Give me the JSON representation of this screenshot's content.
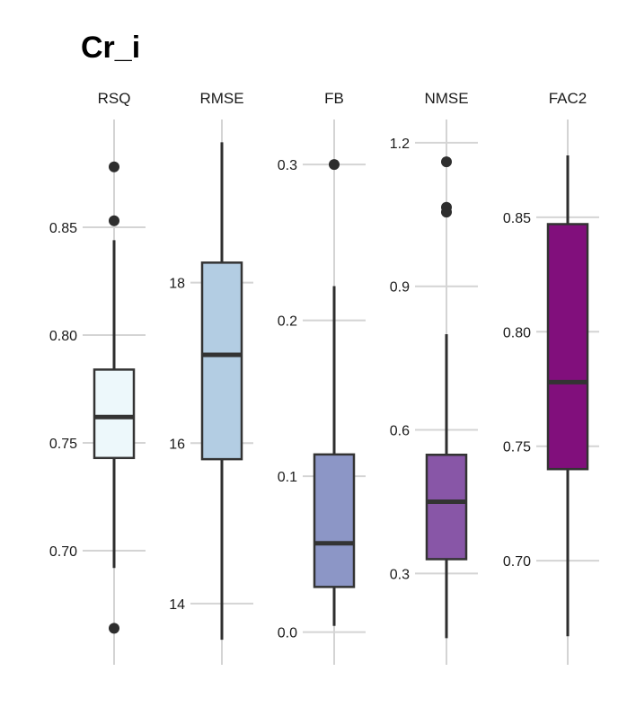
{
  "chart_data": {
    "type": "box",
    "title": "Cr_i",
    "grid": true,
    "panels": [
      {
        "label": "RSQ",
        "fill": "#edf8fb",
        "ylim": [
          0.655,
          0.895
        ],
        "ticks": [
          0.7,
          0.75,
          0.8,
          0.85
        ],
        "tick_labels": [
          "0.70",
          "0.75",
          "0.80",
          "0.85"
        ],
        "box": {
          "whisker_low": 0.692,
          "q1": 0.743,
          "median": 0.762,
          "q3": 0.784,
          "whisker_high": 0.844
        },
        "outliers": [
          0.878,
          0.853,
          0.664
        ]
      },
      {
        "label": "RMSE",
        "fill": "#b3cde3",
        "ylim": [
          13.45,
          19.9
        ],
        "ticks": [
          14,
          16,
          18
        ],
        "tick_labels": [
          "14",
          "16",
          "18"
        ],
        "box": {
          "whisker_low": 13.55,
          "q1": 15.8,
          "median": 17.1,
          "q3": 18.25,
          "whisker_high": 19.75
        },
        "outliers": []
      },
      {
        "label": "FB",
        "fill": "#8c96c6",
        "ylim": [
          -0.01,
          0.322
        ],
        "ticks": [
          0.0,
          0.1,
          0.2,
          0.3
        ],
        "tick_labels": [
          "0.0",
          "0.1",
          "0.2",
          "0.3"
        ],
        "box": {
          "whisker_low": 0.004,
          "q1": 0.029,
          "median": 0.057,
          "q3": 0.114,
          "whisker_high": 0.222
        },
        "outliers": [
          0.3
        ]
      },
      {
        "label": "NMSE",
        "fill": "#8856a7",
        "ylim": [
          0.145,
          1.226
        ],
        "ticks": [
          0.3,
          0.6,
          0.9,
          1.2
        ],
        "tick_labels": [
          "0.3",
          "0.6",
          "0.9",
          "1.2"
        ],
        "box": {
          "whisker_low": 0.165,
          "q1": 0.33,
          "median": 0.45,
          "q3": 0.548,
          "whisker_high": 0.8
        },
        "outliers": [
          1.16,
          1.065,
          1.055
        ]
      },
      {
        "label": "FAC2",
        "fill": "#810f7c",
        "ylim": [
          0.662,
          0.888
        ],
        "ticks": [
          0.7,
          0.75,
          0.8,
          0.85
        ],
        "tick_labels": [
          "0.70",
          "0.75",
          "0.80",
          "0.85"
        ],
        "box": {
          "whisker_low": 0.667,
          "q1": 0.74,
          "median": 0.778,
          "q3": 0.847,
          "whisker_high": 0.877
        },
        "outliers": []
      }
    ]
  }
}
